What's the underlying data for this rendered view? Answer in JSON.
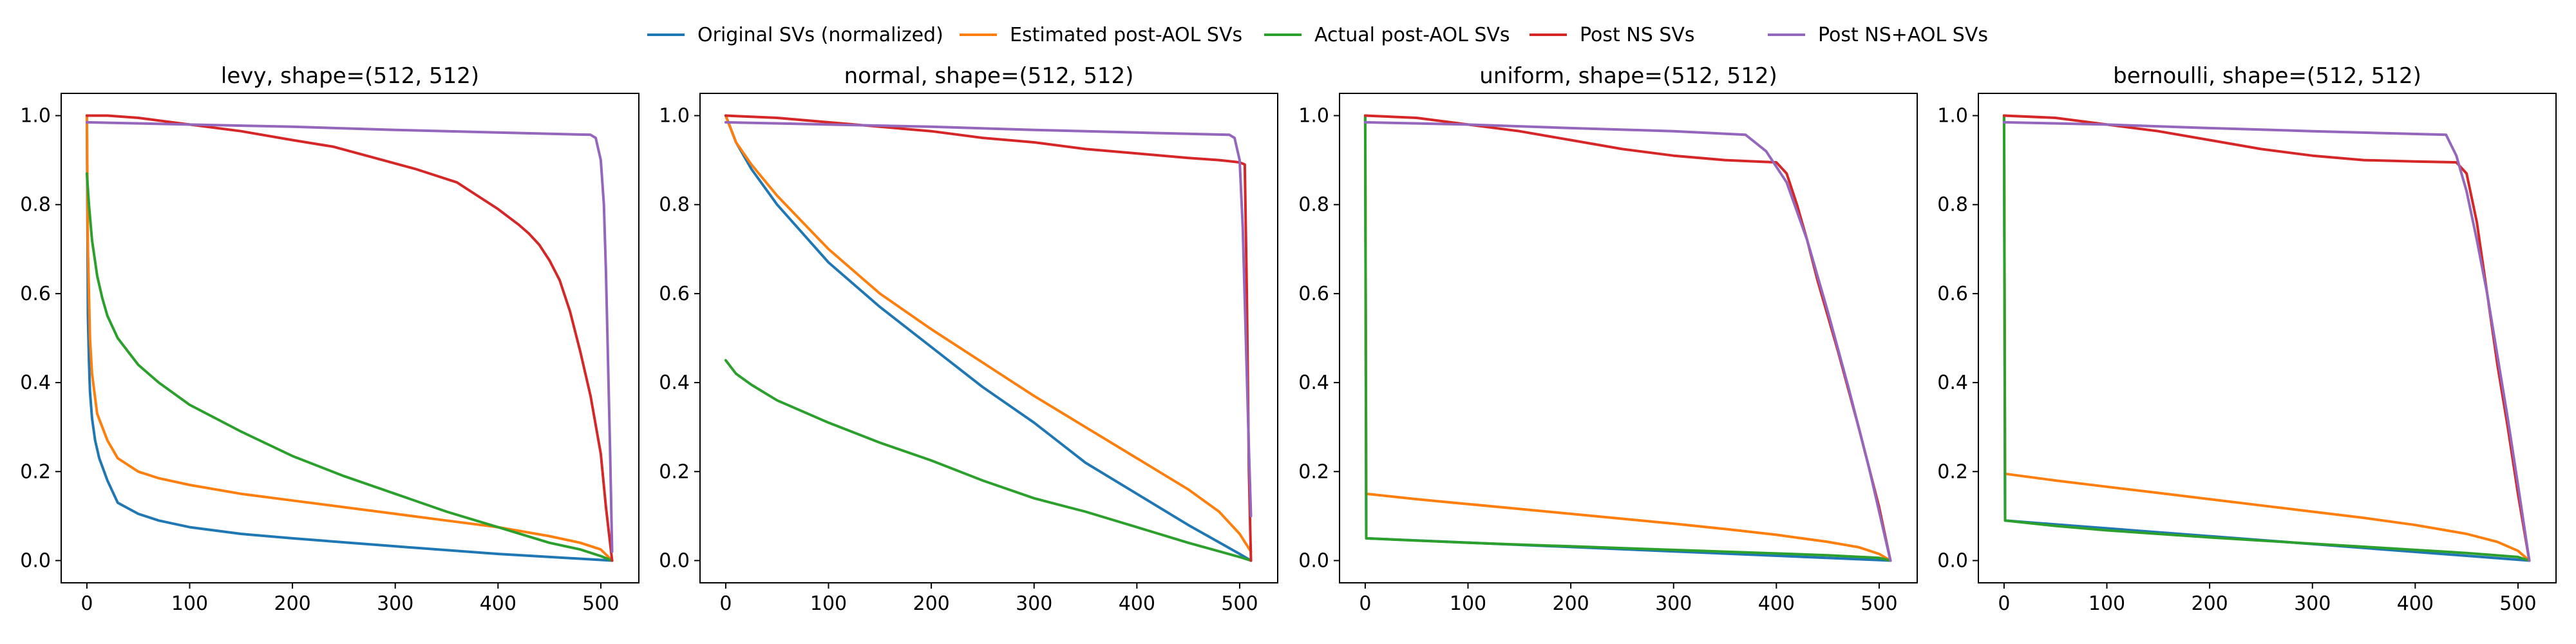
{
  "legend": {
    "placement": "top-center",
    "entries": [
      {
        "label": "Original SVs (normalized)",
        "color": "#1f77b4"
      },
      {
        "label": "Estimated post-AOL SVs",
        "color": "#ff7f0e"
      },
      {
        "label": "Actual post-AOL SVs",
        "color": "#2ca02c"
      },
      {
        "label": "Post NS SVs",
        "color": "#d62728"
      },
      {
        "label": "Post NS+AOL SVs",
        "color": "#9467bd"
      }
    ]
  },
  "chart_data": [
    {
      "type": "line",
      "title": "levy, shape=(512, 512)",
      "xlim": [
        -25,
        537
      ],
      "ylim": [
        -0.05,
        1.05
      ],
      "xticks": [
        0,
        100,
        200,
        300,
        400,
        500
      ],
      "yticks": [
        0.0,
        0.2,
        0.4,
        0.6,
        0.8,
        1.0
      ],
      "grid": false,
      "series": [
        {
          "name": "Original SVs (normalized)",
          "color": "#1f77b4",
          "x": [
            0,
            1,
            2,
            3,
            5,
            8,
            12,
            20,
            30,
            50,
            70,
            100,
            150,
            200,
            300,
            400,
            511
          ],
          "y": [
            1.0,
            0.55,
            0.45,
            0.38,
            0.32,
            0.27,
            0.23,
            0.18,
            0.13,
            0.105,
            0.09,
            0.075,
            0.06,
            0.05,
            0.032,
            0.015,
            0.0
          ]
        },
        {
          "name": "Estimated post-AOL SVs",
          "color": "#ff7f0e",
          "x": [
            0,
            1,
            3,
            5,
            10,
            20,
            30,
            50,
            70,
            100,
            150,
            200,
            250,
            300,
            350,
            400,
            450,
            480,
            500,
            511
          ],
          "y": [
            1.0,
            0.7,
            0.5,
            0.42,
            0.33,
            0.27,
            0.23,
            0.2,
            0.185,
            0.17,
            0.15,
            0.135,
            0.12,
            0.105,
            0.09,
            0.075,
            0.055,
            0.04,
            0.025,
            0.0
          ]
        },
        {
          "name": "Actual post-AOL SVs",
          "color": "#2ca02c",
          "x": [
            0,
            2,
            5,
            10,
            15,
            20,
            30,
            50,
            70,
            100,
            150,
            200,
            250,
            300,
            350,
            400,
            450,
            480,
            500,
            511
          ],
          "y": [
            0.87,
            0.8,
            0.72,
            0.64,
            0.59,
            0.55,
            0.5,
            0.44,
            0.4,
            0.35,
            0.29,
            0.235,
            0.19,
            0.15,
            0.11,
            0.075,
            0.04,
            0.025,
            0.01,
            0.0
          ]
        },
        {
          "name": "Post NS SVs",
          "color": "#d62728",
          "x": [
            0,
            20,
            50,
            100,
            150,
            200,
            240,
            280,
            320,
            360,
            380,
            400,
            420,
            430,
            440,
            450,
            460,
            470,
            480,
            490,
            500,
            505,
            511
          ],
          "y": [
            1.0,
            1.0,
            0.995,
            0.98,
            0.965,
            0.945,
            0.93,
            0.905,
            0.88,
            0.85,
            0.82,
            0.79,
            0.755,
            0.735,
            0.71,
            0.675,
            0.63,
            0.56,
            0.47,
            0.37,
            0.24,
            0.12,
            0.0
          ]
        },
        {
          "name": "Post NS+AOL SVs",
          "color": "#9467bd",
          "x": [
            0,
            100,
            200,
            300,
            400,
            490,
            495,
            500,
            503,
            505,
            507,
            509,
            511
          ],
          "y": [
            0.985,
            0.98,
            0.975,
            0.968,
            0.962,
            0.957,
            0.95,
            0.9,
            0.8,
            0.65,
            0.45,
            0.25,
            0.02
          ]
        }
      ]
    },
    {
      "type": "line",
      "title": "normal, shape=(512, 512)",
      "xlim": [
        -25,
        537
      ],
      "ylim": [
        -0.05,
        1.05
      ],
      "xticks": [
        0,
        100,
        200,
        300,
        400,
        500
      ],
      "yticks": [
        0.0,
        0.2,
        0.4,
        0.6,
        0.8,
        1.0
      ],
      "grid": false,
      "series": [
        {
          "name": "Original SVs (normalized)",
          "color": "#1f77b4",
          "x": [
            0,
            10,
            25,
            50,
            100,
            150,
            200,
            250,
            300,
            350,
            400,
            450,
            500,
            511
          ],
          "y": [
            1.0,
            0.94,
            0.88,
            0.8,
            0.67,
            0.57,
            0.48,
            0.39,
            0.31,
            0.22,
            0.15,
            0.08,
            0.015,
            0.0
          ]
        },
        {
          "name": "Estimated post-AOL SVs",
          "color": "#ff7f0e",
          "x": [
            0,
            10,
            25,
            50,
            100,
            150,
            200,
            250,
            300,
            350,
            400,
            450,
            480,
            500,
            511
          ],
          "y": [
            1.0,
            0.94,
            0.89,
            0.82,
            0.7,
            0.6,
            0.52,
            0.445,
            0.37,
            0.3,
            0.23,
            0.16,
            0.11,
            0.06,
            0.02
          ]
        },
        {
          "name": "Actual post-AOL SVs",
          "color": "#2ca02c",
          "x": [
            0,
            10,
            25,
            50,
            100,
            150,
            200,
            250,
            300,
            350,
            400,
            450,
            500,
            511
          ],
          "y": [
            0.45,
            0.42,
            0.395,
            0.36,
            0.31,
            0.265,
            0.225,
            0.18,
            0.14,
            0.11,
            0.075,
            0.04,
            0.008,
            0.0
          ]
        },
        {
          "name": "Post NS SVs",
          "color": "#d62728",
          "x": [
            0,
            50,
            100,
            150,
            200,
            250,
            300,
            350,
            400,
            450,
            480,
            500,
            505,
            507,
            509,
            511
          ],
          "y": [
            1.0,
            0.995,
            0.985,
            0.975,
            0.965,
            0.95,
            0.94,
            0.925,
            0.915,
            0.905,
            0.9,
            0.895,
            0.89,
            0.6,
            0.2,
            0.0
          ]
        },
        {
          "name": "Post NS+AOL SVs",
          "color": "#9467bd",
          "x": [
            0,
            100,
            200,
            300,
            400,
            490,
            495,
            500,
            503,
            506,
            509,
            511
          ],
          "y": [
            0.985,
            0.98,
            0.975,
            0.968,
            0.962,
            0.957,
            0.95,
            0.9,
            0.75,
            0.5,
            0.25,
            0.1
          ]
        }
      ]
    },
    {
      "type": "line",
      "title": "uniform, shape=(512, 512)",
      "xlim": [
        -25,
        537
      ],
      "ylim": [
        -0.05,
        1.05
      ],
      "xticks": [
        0,
        100,
        200,
        300,
        400,
        500
      ],
      "yticks": [
        0.0,
        0.2,
        0.4,
        0.6,
        0.8,
        1.0
      ],
      "grid": false,
      "series": [
        {
          "name": "Original SVs (normalized)",
          "color": "#1f77b4",
          "x": [
            0,
            1,
            511
          ],
          "y": [
            1.0,
            0.05,
            0.0
          ]
        },
        {
          "name": "Estimated post-AOL SVs",
          "color": "#ff7f0e",
          "x": [
            0,
            1,
            50,
            100,
            150,
            200,
            250,
            300,
            350,
            400,
            450,
            480,
            500,
            511
          ],
          "y": [
            1.0,
            0.15,
            0.138,
            0.127,
            0.116,
            0.105,
            0.094,
            0.083,
            0.071,
            0.058,
            0.042,
            0.03,
            0.015,
            0.0
          ]
        },
        {
          "name": "Actual post-AOL SVs",
          "color": "#2ca02c",
          "x": [
            0,
            1,
            50,
            100,
            150,
            200,
            250,
            300,
            350,
            400,
            450,
            500,
            511
          ],
          "y": [
            1.0,
            0.05,
            0.045,
            0.04,
            0.036,
            0.032,
            0.028,
            0.024,
            0.02,
            0.016,
            0.012,
            0.006,
            0.0
          ]
        },
        {
          "name": "Post NS SVs",
          "color": "#d62728",
          "x": [
            0,
            50,
            100,
            150,
            200,
            250,
            300,
            350,
            380,
            400,
            410,
            420,
            430,
            440,
            460,
            480,
            500,
            511
          ],
          "y": [
            1.0,
            0.995,
            0.98,
            0.965,
            0.945,
            0.925,
            0.91,
            0.9,
            0.897,
            0.895,
            0.87,
            0.8,
            0.72,
            0.63,
            0.47,
            0.3,
            0.12,
            0.0
          ]
        },
        {
          "name": "Post NS+AOL SVs",
          "color": "#9467bd",
          "x": [
            0,
            100,
            200,
            300,
            370,
            390,
            410,
            430,
            450,
            470,
            490,
            511
          ],
          "y": [
            0.985,
            0.98,
            0.972,
            0.965,
            0.957,
            0.92,
            0.85,
            0.72,
            0.56,
            0.39,
            0.21,
            0.0
          ]
        }
      ]
    },
    {
      "type": "line",
      "title": "bernoulli, shape=(512, 512)",
      "xlim": [
        -25,
        537
      ],
      "ylim": [
        -0.05,
        1.05
      ],
      "xticks": [
        0,
        100,
        200,
        300,
        400,
        500
      ],
      "yticks": [
        0.0,
        0.2,
        0.4,
        0.6,
        0.8,
        1.0
      ],
      "grid": false,
      "series": [
        {
          "name": "Original SVs (normalized)",
          "color": "#1f77b4",
          "x": [
            0,
            1,
            511
          ],
          "y": [
            1.0,
            0.09,
            0.0
          ]
        },
        {
          "name": "Estimated post-AOL SVs",
          "color": "#ff7f0e",
          "x": [
            0,
            1,
            50,
            100,
            150,
            200,
            250,
            300,
            350,
            400,
            450,
            480,
            500,
            511
          ],
          "y": [
            1.0,
            0.195,
            0.18,
            0.166,
            0.152,
            0.138,
            0.124,
            0.11,
            0.096,
            0.08,
            0.06,
            0.042,
            0.022,
            0.0
          ]
        },
        {
          "name": "Actual post-AOL SVs",
          "color": "#2ca02c",
          "x": [
            0,
            1,
            50,
            100,
            150,
            200,
            250,
            300,
            350,
            400,
            450,
            500,
            511
          ],
          "y": [
            1.0,
            0.09,
            0.078,
            0.068,
            0.06,
            0.052,
            0.045,
            0.038,
            0.031,
            0.024,
            0.017,
            0.008,
            0.0
          ]
        },
        {
          "name": "Post NS SVs",
          "color": "#d62728",
          "x": [
            0,
            50,
            100,
            150,
            200,
            250,
            300,
            350,
            400,
            440,
            450,
            460,
            470,
            480,
            490,
            500,
            511
          ],
          "y": [
            1.0,
            0.995,
            0.98,
            0.965,
            0.945,
            0.925,
            0.91,
            0.9,
            0.897,
            0.895,
            0.87,
            0.76,
            0.6,
            0.44,
            0.3,
            0.15,
            0.0
          ]
        },
        {
          "name": "Post NS+AOL SVs",
          "color": "#9467bd",
          "x": [
            0,
            100,
            200,
            300,
            430,
            440,
            450,
            460,
            470,
            480,
            490,
            500,
            511
          ],
          "y": [
            0.985,
            0.98,
            0.972,
            0.965,
            0.957,
            0.91,
            0.83,
            0.72,
            0.6,
            0.46,
            0.32,
            0.17,
            0.0
          ]
        }
      ]
    }
  ]
}
